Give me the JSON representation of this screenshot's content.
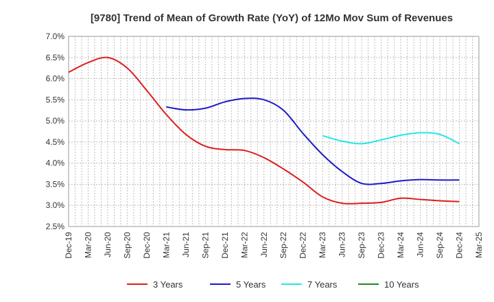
{
  "chart_data": {
    "type": "line",
    "title": "[9780]  Trend of Mean of Growth Rate (YoY) of 12Mo Mov Sum of Revenues",
    "xlabel": "",
    "ylabel": "",
    "grid": true,
    "legend_position": "bottom",
    "ylim": [
      2.5,
      7.0
    ],
    "y_ticks": [
      "2.5%",
      "3.0%",
      "3.5%",
      "4.0%",
      "4.5%",
      "5.0%",
      "5.5%",
      "6.0%",
      "6.5%",
      "7.0%"
    ],
    "x_ticks": [
      "Dec-19",
      "Mar-20",
      "Jun-20",
      "Sep-20",
      "Dec-20",
      "Mar-21",
      "Jun-21",
      "Sep-21",
      "Dec-21",
      "Mar-22",
      "Jun-22",
      "Sep-22",
      "Dec-22",
      "Mar-23",
      "Jun-23",
      "Sep-23",
      "Dec-23",
      "Mar-24",
      "Jun-24",
      "Sep-24",
      "Dec-24",
      "Mar-25"
    ],
    "categories": [
      "Dec-19",
      "Mar-20",
      "Jun-20",
      "Sep-20",
      "Dec-20",
      "Mar-21",
      "Jun-21",
      "Sep-21",
      "Dec-21",
      "Mar-22",
      "Jun-22",
      "Sep-22",
      "Dec-22",
      "Mar-23",
      "Jun-23",
      "Sep-23",
      "Dec-23",
      "Mar-24",
      "Jun-24",
      "Sep-24",
      "Dec-24",
      "Mar-25"
    ],
    "series": [
      {
        "name": "3 Years",
        "color": "#dd1c1c",
        "values": [
          6.15,
          6.38,
          6.5,
          6.25,
          5.72,
          5.15,
          4.68,
          4.4,
          4.32,
          4.3,
          4.13,
          3.86,
          3.55,
          3.2,
          3.05,
          3.05,
          3.07,
          3.17,
          3.14,
          3.11,
          3.09,
          null
        ]
      },
      {
        "name": "5 Years",
        "color": "#1a1ac6",
        "values": [
          null,
          null,
          null,
          null,
          null,
          5.33,
          5.26,
          5.3,
          5.45,
          5.53,
          5.5,
          5.25,
          4.7,
          4.2,
          3.8,
          3.52,
          3.52,
          3.58,
          3.61,
          3.6,
          3.6,
          null
        ]
      },
      {
        "name": "7 Years",
        "color": "#22e6e6",
        "values": [
          null,
          null,
          null,
          null,
          null,
          null,
          null,
          null,
          null,
          null,
          null,
          null,
          null,
          4.65,
          4.52,
          4.46,
          4.55,
          4.66,
          4.72,
          4.68,
          4.46,
          null
        ]
      },
      {
        "name": "10 Years",
        "color": "#1a8a1a",
        "values": [
          null,
          null,
          null,
          null,
          null,
          null,
          null,
          null,
          null,
          null,
          null,
          null,
          null,
          null,
          null,
          null,
          null,
          null,
          null,
          null,
          null,
          null
        ]
      }
    ]
  }
}
